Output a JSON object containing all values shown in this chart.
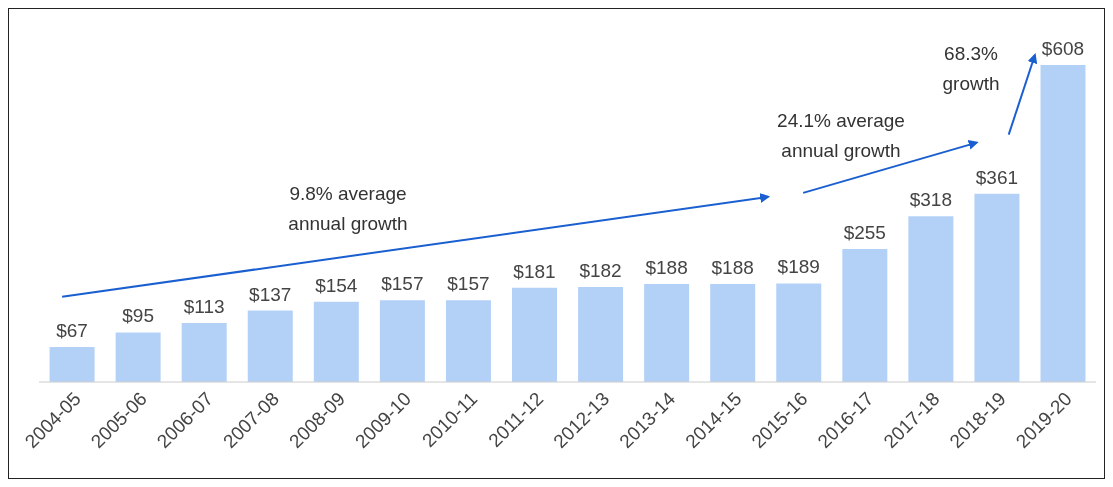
{
  "chart_data": {
    "type": "bar",
    "categories": [
      "2004-05",
      "2005-06",
      "2006-07",
      "2007-08",
      "2008-09",
      "2009-10",
      "2010-11",
      "2011-12",
      "2012-13",
      "2013-14",
      "2014-15",
      "2015-16",
      "2016-17",
      "2017-18",
      "2018-19",
      "2019-20"
    ],
    "values": [
      67,
      95,
      113,
      137,
      154,
      157,
      157,
      181,
      182,
      188,
      188,
      189,
      255,
      318,
      361,
      608
    ],
    "value_labels": [
      "$67",
      "$95",
      "$113",
      "$137",
      "$154",
      "$157",
      "$157",
      "$181",
      "$182",
      "$188",
      "$188",
      "$189",
      "$255",
      "$318",
      "$361",
      "$608"
    ],
    "color": "#b3d1f7",
    "annotations": [
      "9.8% average annual growth",
      "24.1% average annual growth",
      "68.3% growth"
    ]
  }
}
